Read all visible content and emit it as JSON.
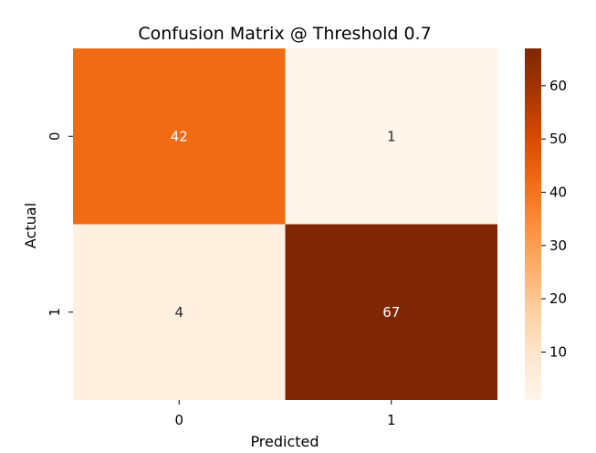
{
  "chart_data": {
    "type": "heatmap",
    "title": "Confusion Matrix @ Threshold 0.7",
    "xlabel": "Predicted",
    "ylabel": "Actual",
    "x_categories": [
      "0",
      "1"
    ],
    "y_categories": [
      "0",
      "1"
    ],
    "values": [
      [
        42,
        1
      ],
      [
        4,
        67
      ]
    ],
    "colormap": "Oranges",
    "colorbar": {
      "range": [
        1,
        67
      ],
      "ticks": [
        10,
        20,
        30,
        40,
        50,
        60
      ]
    },
    "colors": {
      "low": "#fff5eb",
      "high": "#7f2704"
    }
  }
}
